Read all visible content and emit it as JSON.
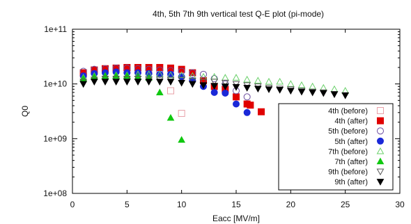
{
  "chart_data": {
    "type": "scatter",
    "title": "4th, 5th 7th 9th vertical test Q-E plot (pi-mode)",
    "xlabel": "Eacc [MV/m]",
    "ylabel": "Q0",
    "xlim": [
      0,
      30
    ],
    "ylim": [
      100000000.0,
      100000000000.0
    ],
    "yscale": "log",
    "x_ticks": [
      "0",
      "5",
      "10",
      "15",
      "20",
      "25",
      "30"
    ],
    "y_ticks": [
      "1e+08",
      "1e+09",
      "1e+10",
      "1e+11"
    ],
    "grid": false,
    "legend_position": "bottom-right",
    "series": [
      {
        "name": "4th (before)",
        "marker": "square-open",
        "color": "#e8a0a8",
        "x": [
          1,
          2,
          3,
          4,
          5,
          6,
          7,
          8,
          9,
          10
        ],
        "y": [
          15000000000.0,
          17000000000.0,
          18000000000.0,
          18000000000.0,
          18000000000.0,
          17500000000.0,
          17000000000.0,
          16000000000.0,
          7500000000.0,
          2900000000.0
        ]
      },
      {
        "name": "4th (after)",
        "marker": "square-filled",
        "color": "#e00000",
        "x": [
          1,
          2,
          3,
          4,
          5,
          6,
          7,
          8,
          9,
          10,
          11,
          12,
          13,
          14,
          15,
          16,
          16.3,
          17.3
        ],
        "y": [
          16000000000.0,
          18000000000.0,
          19000000000.0,
          19500000000.0,
          20000000000.0,
          20000000000.0,
          20000000000.0,
          20000000000.0,
          19500000000.0,
          18500000000.0,
          16000000000.0,
          11500000000.0,
          9000000000.0,
          8000000000.0,
          5800000000.0,
          4300000000.0,
          4100000000.0,
          3100000000.0
        ]
      },
      {
        "name": "5th (before)",
        "marker": "circle-open",
        "color": "#6a4a9e",
        "x": [
          1,
          2,
          3,
          4,
          5,
          6,
          7,
          8,
          9,
          10,
          11,
          12,
          13,
          14,
          15,
          16
        ],
        "y": [
          17000000000.0,
          18500000000.0,
          19000000000.0,
          19500000000.0,
          19500000000.0,
          19000000000.0,
          18500000000.0,
          18000000000.0,
          17500000000.0,
          17000000000.0,
          16000000000.0,
          15000000000.0,
          12500000000.0,
          10000000000.0,
          7500000000.0,
          5800000000.0
        ]
      },
      {
        "name": "5th (after)",
        "marker": "circle-filled",
        "color": "#1a28d8",
        "x": [
          1,
          2,
          3,
          4,
          5,
          6,
          7,
          8,
          9,
          10,
          11,
          12,
          13,
          14,
          15,
          16
        ],
        "y": [
          14000000000.0,
          15500000000.0,
          16000000000.0,
          16500000000.0,
          16000000000.0,
          16000000000.0,
          15500000000.0,
          15000000000.0,
          15000000000.0,
          13500000000.0,
          11500000000.0,
          9000000000.0,
          7000000000.0,
          6800000000.0,
          4300000000.0,
          3000000000.0
        ]
      },
      {
        "name": "7th (before)",
        "marker": "triangle-open",
        "color": "#6ad06a",
        "x": [
          1,
          2,
          3,
          4,
          5,
          6,
          7,
          8,
          9,
          10,
          11,
          12,
          13,
          14,
          15,
          16,
          17,
          18,
          19,
          20,
          21,
          22,
          23,
          24,
          25
        ],
        "y": [
          13000000000.0,
          14000000000.0,
          14000000000.0,
          14500000000.0,
          14500000000.0,
          15000000000.0,
          15000000000.0,
          15000000000.0,
          14500000000.0,
          14500000000.0,
          14000000000.0,
          13500000000.0,
          13500000000.0,
          13000000000.0,
          13000000000.0,
          12000000000.0,
          11500000000.0,
          11000000000.0,
          11000000000.0,
          10000000000.0,
          9500000000.0,
          9000000000.0,
          8500000000.0,
          8000000000.0,
          7500000000.0
        ]
      },
      {
        "name": "7th (after)",
        "marker": "triangle-filled",
        "color": "#10c810",
        "x": [
          1,
          2,
          3,
          4,
          5,
          6,
          7,
          8,
          9,
          10
        ],
        "y": [
          12500000000.0,
          13500000000.0,
          14000000000.0,
          14000000000.0,
          14000000000.0,
          13500000000.0,
          13000000000.0,
          7000000000.0,
          2400000000.0,
          950000000.0
        ]
      },
      {
        "name": "9th (before)",
        "marker": "triangle-down-open",
        "color": "#555555",
        "x": [
          1,
          2,
          3,
          4,
          5,
          6,
          7,
          8,
          9,
          10,
          11,
          12,
          13,
          14,
          15,
          16,
          17,
          18,
          19,
          20,
          21,
          22,
          23,
          24,
          25
        ],
        "y": [
          11000000000.0,
          12000000000.0,
          12500000000.0,
          12500000000.0,
          12500000000.0,
          12500000000.0,
          12000000000.0,
          12000000000.0,
          12000000000.0,
          12000000000.0,
          11500000000.0,
          11000000000.0,
          11000000000.0,
          10500000000.0,
          10000000000.0,
          9500000000.0,
          9000000000.0,
          8500000000.0,
          8200000000.0,
          8000000000.0,
          7500000000.0,
          7200000000.0,
          7000000000.0,
          6500000000.0,
          6200000000.0
        ]
      },
      {
        "name": "9th (after)",
        "marker": "triangle-down-filled",
        "color": "#000000",
        "x": [
          1,
          2,
          3,
          4,
          5,
          6,
          7,
          8,
          9,
          10,
          11,
          12,
          13,
          14,
          15,
          16,
          17,
          18,
          19,
          20,
          21,
          22,
          23,
          24,
          25
        ],
        "y": [
          10000000000.0,
          11000000000.0,
          11000000000.0,
          11000000000.0,
          11000000000.0,
          11000000000.0,
          11000000000.0,
          11000000000.0,
          11000000000.0,
          10500000000.0,
          10000000000.0,
          9500000000.0,
          9200000000.0,
          9000000000.0,
          8800000000.0,
          8500000000.0,
          8200000000.0,
          8000000000.0,
          7800000000.0,
          7500000000.0,
          7200000000.0,
          7000000000.0,
          6800000000.0,
          6500000000.0,
          6200000000.0
        ]
      }
    ]
  }
}
